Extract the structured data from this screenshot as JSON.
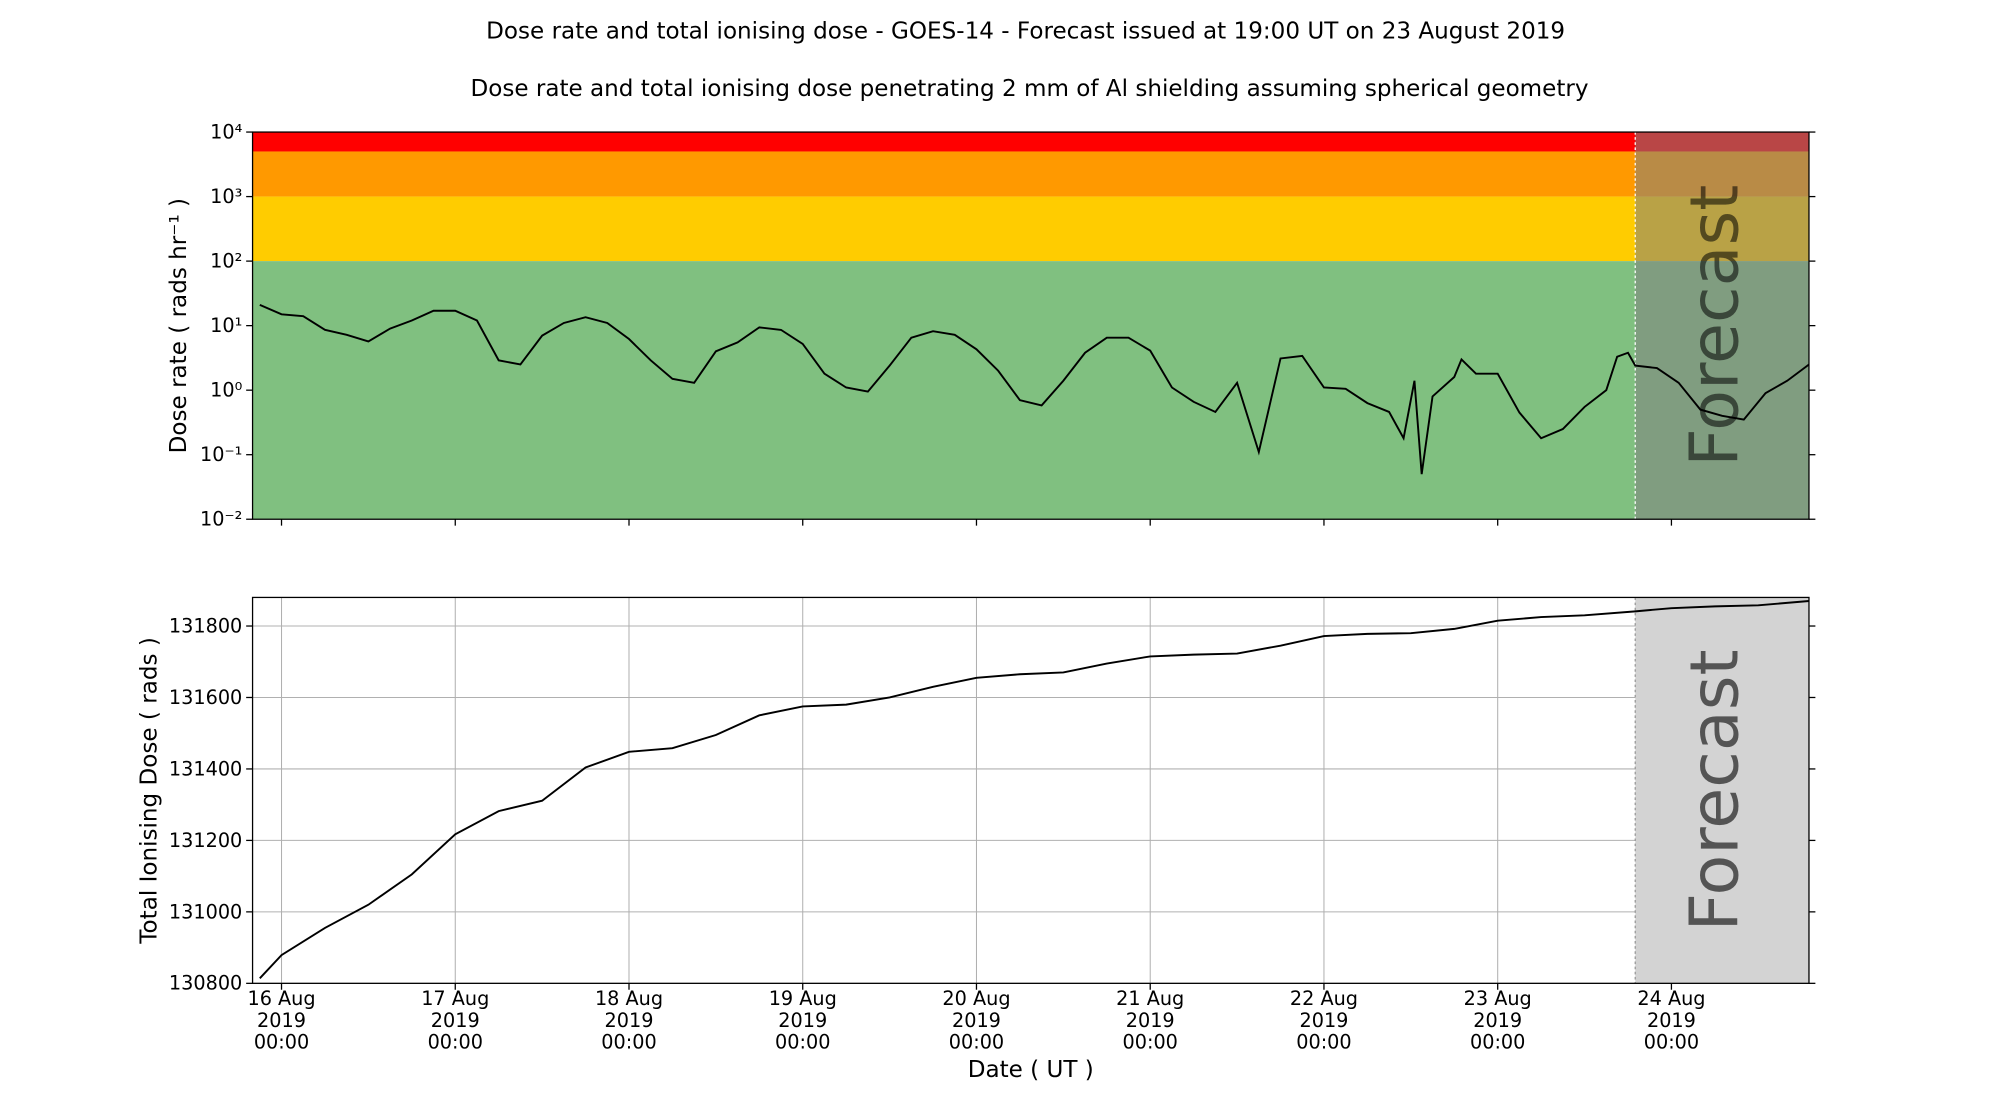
{
  "title": "Dose rate and total ionising dose - GOES-14 - Forecast issued at 19:00 UT on 23 August 2019",
  "subtitle": "Dose rate and total ionising dose penetrating 2 mm of Al shielding assuming spherical geometry",
  "chart_data": [
    {
      "type": "line",
      "ylabel": "Dose rate ( rads hr⁻¹ )",
      "yscale": "log",
      "ylim": [
        0.01,
        10000
      ],
      "yticks": [
        {
          "value": 0.01,
          "label": "10⁻²"
        },
        {
          "value": 0.1,
          "label": "10⁻¹"
        },
        {
          "value": 1,
          "label": "10⁰"
        },
        {
          "value": 10,
          "label": "10¹"
        },
        {
          "value": 100,
          "label": "10²"
        },
        {
          "value": 1000,
          "label": "10³"
        },
        {
          "value": 10000,
          "label": "10⁴"
        }
      ],
      "xlim": [
        "2019-08-15T20:00",
        "2019-08-24T19:00"
      ],
      "bands": [
        {
          "from": 5000,
          "to": 10000,
          "color": "#ff0000"
        },
        {
          "from": 1000,
          "to": 5000,
          "color": "#ff9900"
        },
        {
          "from": 100,
          "to": 1000,
          "color": "#ffcc00"
        },
        {
          "from": 0.01,
          "to": 100,
          "color": "#80c080"
        }
      ],
      "forecast": {
        "start": "2019-08-23T19:00",
        "label": "Forecast",
        "color": "#808080"
      },
      "x": [
        "2019-08-15T21:00",
        "2019-08-16T00:00",
        "2019-08-16T03:00",
        "2019-08-16T06:00",
        "2019-08-16T09:00",
        "2019-08-16T12:00",
        "2019-08-16T15:00",
        "2019-08-16T18:00",
        "2019-08-16T21:00",
        "2019-08-17T00:00",
        "2019-08-17T03:00",
        "2019-08-17T06:00",
        "2019-08-17T09:00",
        "2019-08-17T12:00",
        "2019-08-17T15:00",
        "2019-08-17T18:00",
        "2019-08-17T21:00",
        "2019-08-18T00:00",
        "2019-08-18T03:00",
        "2019-08-18T06:00",
        "2019-08-18T09:00",
        "2019-08-18T12:00",
        "2019-08-18T15:00",
        "2019-08-18T18:00",
        "2019-08-18T21:00",
        "2019-08-19T00:00",
        "2019-08-19T03:00",
        "2019-08-19T06:00",
        "2019-08-19T09:00",
        "2019-08-19T12:00",
        "2019-08-19T15:00",
        "2019-08-19T18:00",
        "2019-08-19T21:00",
        "2019-08-20T00:00",
        "2019-08-20T03:00",
        "2019-08-20T06:00",
        "2019-08-20T09:00",
        "2019-08-20T12:00",
        "2019-08-20T15:00",
        "2019-08-20T18:00",
        "2019-08-20T21:00",
        "2019-08-21T00:00",
        "2019-08-21T03:00",
        "2019-08-21T06:00",
        "2019-08-21T09:00",
        "2019-08-21T12:00",
        "2019-08-21T15:00",
        "2019-08-21T18:00",
        "2019-08-21T21:00",
        "2019-08-22T00:00",
        "2019-08-22T03:00",
        "2019-08-22T06:00",
        "2019-08-22T09:00",
        "2019-08-22T11:00",
        "2019-08-22T12:30",
        "2019-08-22T13:30",
        "2019-08-22T15:00",
        "2019-08-22T18:00",
        "2019-08-22T19:00",
        "2019-08-22T21:00",
        "2019-08-23T00:00",
        "2019-08-23T03:00",
        "2019-08-23T06:00",
        "2019-08-23T09:00",
        "2019-08-23T12:00",
        "2019-08-23T15:00",
        "2019-08-23T16:30",
        "2019-08-23T18:00",
        "2019-08-23T19:00",
        "2019-08-23T22:00",
        "2019-08-24T01:00",
        "2019-08-24T04:00",
        "2019-08-24T07:00",
        "2019-08-24T10:00",
        "2019-08-24T13:00",
        "2019-08-24T16:00",
        "2019-08-24T19:00"
      ],
      "series": [
        {
          "color": "#000000",
          "values": [
            21,
            15,
            14,
            8.6,
            7.2,
            5.7,
            9,
            12,
            17,
            17,
            12,
            2.9,
            2.5,
            7,
            11,
            13.5,
            11,
            6.2,
            2.9,
            1.5,
            1.3,
            4,
            5.5,
            9.4,
            8.6,
            5.2,
            1.8,
            1.1,
            0.95,
            2.4,
            6.5,
            8.2,
            7.2,
            4.3,
            2,
            0.7,
            0.58,
            1.4,
            3.8,
            6.5,
            6.5,
            4.1,
            1.1,
            0.66,
            0.46,
            1.3,
            0.11,
            3.1,
            3.4,
            1.1,
            1.05,
            0.63,
            0.46,
            0.18,
            1.4,
            0.05,
            0.8,
            1.6,
            3,
            1.8,
            1.8,
            0.45,
            0.18,
            0.25,
            0.55,
            1.0,
            3.3,
            3.8,
            2.4,
            2.2,
            1.3,
            0.5,
            0.4,
            0.35,
            0.9,
            1.4,
            2.5
          ]
        }
      ]
    },
    {
      "type": "line",
      "ylabel": "Total Ionising Dose ( rads )",
      "xlabel": "Date ( UT )",
      "grid": true,
      "ylim": [
        130800,
        131880
      ],
      "yticks": [
        130800,
        131000,
        131200,
        131400,
        131600,
        131800
      ],
      "xlim": [
        "2019-08-15T20:00",
        "2019-08-24T19:00"
      ],
      "xticks": [
        {
          "value": "2019-08-16T00:00",
          "label": "16 Aug\n2019\n00:00"
        },
        {
          "value": "2019-08-17T00:00",
          "label": "17 Aug\n2019\n00:00"
        },
        {
          "value": "2019-08-18T00:00",
          "label": "18 Aug\n2019\n00:00"
        },
        {
          "value": "2019-08-19T00:00",
          "label": "19 Aug\n2019\n00:00"
        },
        {
          "value": "2019-08-20T00:00",
          "label": "20 Aug\n2019\n00:00"
        },
        {
          "value": "2019-08-21T00:00",
          "label": "21 Aug\n2019\n00:00"
        },
        {
          "value": "2019-08-22T00:00",
          "label": "22 Aug\n2019\n00:00"
        },
        {
          "value": "2019-08-23T00:00",
          "label": "23 Aug\n2019\n00:00"
        },
        {
          "value": "2019-08-24T00:00",
          "label": "24 Aug\n2019\n00:00"
        }
      ],
      "forecast": {
        "start": "2019-08-23T19:00",
        "label": "Forecast",
        "color": "#d3d3d3"
      },
      "x": [
        "2019-08-15T21:00",
        "2019-08-16T00:00",
        "2019-08-16T06:00",
        "2019-08-16T12:00",
        "2019-08-16T18:00",
        "2019-08-17T00:00",
        "2019-08-17T06:00",
        "2019-08-17T12:00",
        "2019-08-17T18:00",
        "2019-08-18T00:00",
        "2019-08-18T06:00",
        "2019-08-18T12:00",
        "2019-08-18T18:00",
        "2019-08-19T00:00",
        "2019-08-19T06:00",
        "2019-08-19T12:00",
        "2019-08-19T18:00",
        "2019-08-20T00:00",
        "2019-08-20T06:00",
        "2019-08-20T12:00",
        "2019-08-20T18:00",
        "2019-08-21T00:00",
        "2019-08-21T06:00",
        "2019-08-21T12:00",
        "2019-08-21T18:00",
        "2019-08-22T00:00",
        "2019-08-22T06:00",
        "2019-08-22T12:00",
        "2019-08-22T18:00",
        "2019-08-23T00:00",
        "2019-08-23T06:00",
        "2019-08-23T12:00",
        "2019-08-23T19:00",
        "2019-08-24T00:00",
        "2019-08-24T06:00",
        "2019-08-24T12:00",
        "2019-08-24T19:00"
      ],
      "series": [
        {
          "color": "#000000",
          "values": [
            130814,
            130879,
            130955,
            131020,
            131105,
            131217,
            131282,
            131311,
            131404,
            131448,
            131458,
            131495,
            131550,
            131575,
            131580,
            131600,
            131630,
            131655,
            131665,
            131670,
            131695,
            131715,
            131720,
            131723,
            131745,
            131772,
            131778,
            131780,
            131792,
            131815,
            131825,
            131830,
            131841,
            131850,
            131855,
            131858,
            131870
          ]
        }
      ]
    }
  ]
}
